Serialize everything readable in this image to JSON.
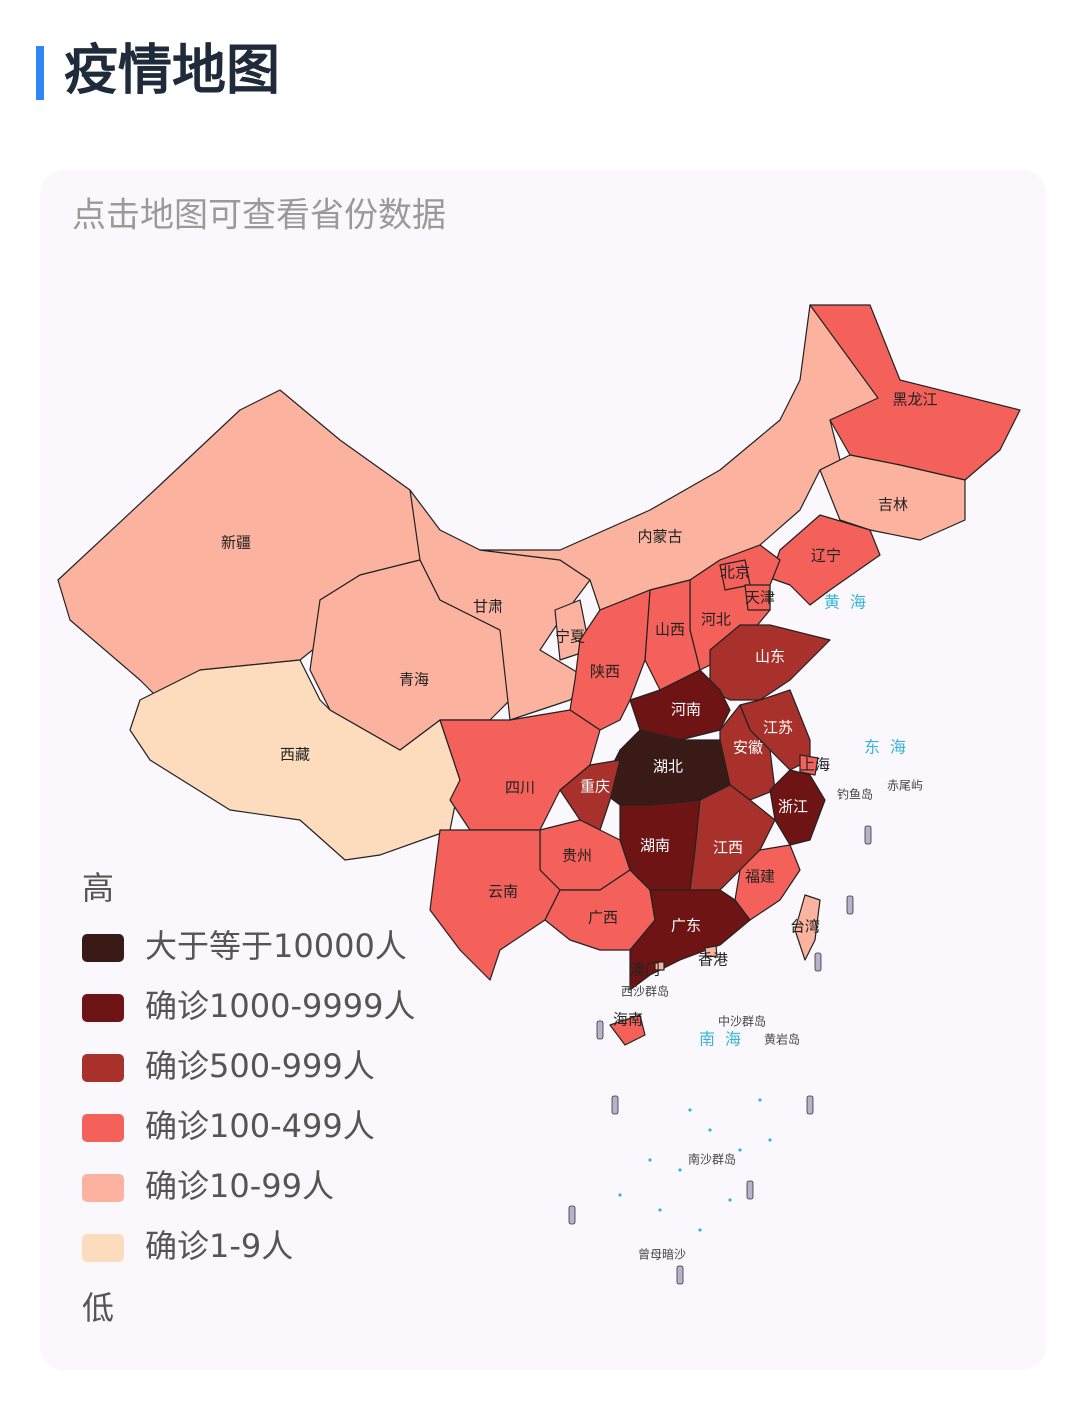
{
  "header": {
    "title": "疫情地图"
  },
  "map": {
    "hint": "点击地图可查看省份数据",
    "regions": [
      {
        "name": "新疆",
        "color": "#fbb3a0"
      },
      {
        "name": "西藏",
        "color": "#fddcbd"
      },
      {
        "name": "青海",
        "color": "#fbb3a0"
      },
      {
        "name": "甘肃",
        "color": "#fbb3a0"
      },
      {
        "name": "内蒙古",
        "color": "#fbb3a0"
      },
      {
        "name": "黑龙江",
        "color": "#f4605a"
      },
      {
        "name": "吉林",
        "color": "#fbb3a0"
      },
      {
        "name": "辽宁",
        "color": "#f4605a"
      },
      {
        "name": "河北",
        "color": "#f4605a"
      },
      {
        "name": "北京",
        "color": "#f4605a"
      },
      {
        "name": "天津",
        "color": "#f4605a"
      },
      {
        "name": "山西",
        "color": "#f4605a"
      },
      {
        "name": "宁夏",
        "color": "#fbb3a0"
      },
      {
        "name": "陕西",
        "color": "#f4605a"
      },
      {
        "name": "山东",
        "color": "#a8312b"
      },
      {
        "name": "河南",
        "color": "#6e1414"
      },
      {
        "name": "江苏",
        "color": "#a8312b"
      },
      {
        "name": "安徽",
        "color": "#a8312b"
      },
      {
        "name": "上海",
        "color": "#f4605a"
      },
      {
        "name": "湖北",
        "color": "#3a1a17"
      },
      {
        "name": "重庆",
        "color": "#a8312b"
      },
      {
        "name": "四川",
        "color": "#f4605a"
      },
      {
        "name": "浙江",
        "color": "#6e1414"
      },
      {
        "name": "湖南",
        "color": "#6e1414"
      },
      {
        "name": "江西",
        "color": "#a8312b"
      },
      {
        "name": "贵州",
        "color": "#f4605a"
      },
      {
        "name": "福建",
        "color": "#f4605a"
      },
      {
        "name": "云南",
        "color": "#f4605a"
      },
      {
        "name": "广西",
        "color": "#f4605a"
      },
      {
        "name": "广东",
        "color": "#6e1414"
      },
      {
        "name": "台湾",
        "color": "#fbb3a0"
      },
      {
        "name": "香港",
        "color": "#fbb3a0"
      },
      {
        "name": "澳门",
        "color": "#fbb3a0"
      },
      {
        "name": "海南",
        "color": "#f4605a"
      }
    ],
    "seas": [
      "黄海",
      "东海",
      "南海"
    ],
    "islands": [
      "钓鱼岛",
      "赤尾屿",
      "西沙群岛",
      "中沙群岛",
      "黄岩岛",
      "南沙群岛",
      "曾母暗沙"
    ]
  },
  "legend": {
    "high": "高",
    "low": "低",
    "items": [
      {
        "label": "大于等于10000人",
        "color": "#3a1a17"
      },
      {
        "label": "确诊1000-9999人",
        "color": "#6e1414"
      },
      {
        "label": "确诊500-999人",
        "color": "#a8312b"
      },
      {
        "label": "确诊100-499人",
        "color": "#f4605a"
      },
      {
        "label": "确诊10-99人",
        "color": "#fbb3a0"
      },
      {
        "label": "确诊1-9人",
        "color": "#fddcbd"
      }
    ]
  }
}
